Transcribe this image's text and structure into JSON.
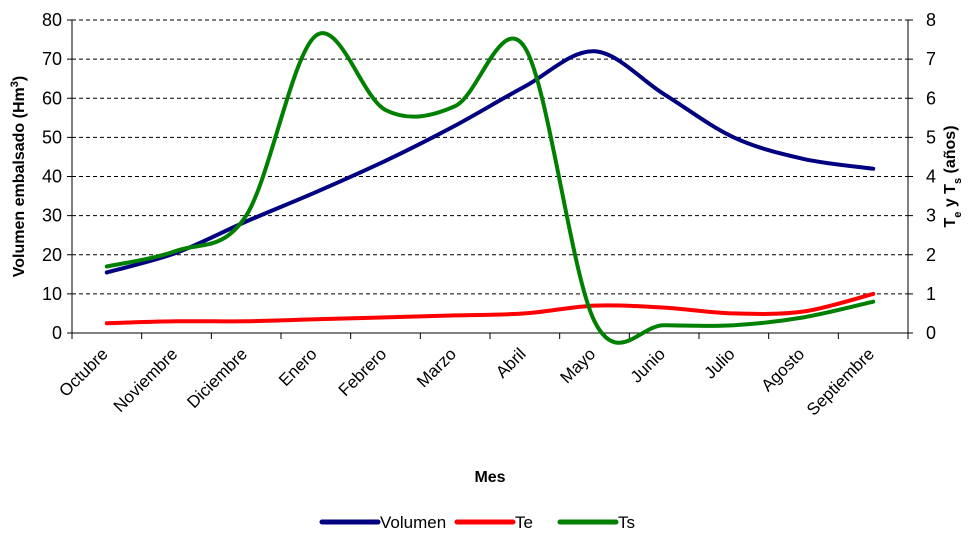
{
  "chart_data": {
    "type": "line",
    "xlabel": "Mes",
    "ylabel_left": "Volumen embalsado (Hm",
    "ylabel_left_sup": "3",
    "ylabel_left_end": ")",
    "ylabel_right": "Te y Ts (años)",
    "ylabel_right_parts": [
      "T",
      "e",
      " y ",
      "T",
      "s",
      " (años)"
    ],
    "categories": [
      "Octubre",
      "Noviembre",
      "Diciembre",
      "Enero",
      "Febrero",
      "Marzo",
      "Abril",
      "Mayo",
      "Junio",
      "Julio",
      "Agosto",
      "Septiembre"
    ],
    "ylim_left": [
      0,
      80
    ],
    "yticks_left": [
      0,
      10,
      20,
      30,
      40,
      50,
      60,
      70,
      80
    ],
    "ylim_right": [
      0,
      8
    ],
    "yticks_right": [
      0,
      1,
      2,
      3,
      4,
      5,
      6,
      7,
      8
    ],
    "grid": "horizontal-dashed",
    "legend_position": "bottom",
    "series": [
      {
        "name": "Volumen",
        "axis": "left",
        "color": "#000080",
        "values": [
          15.5,
          20.5,
          28.5,
          36,
          44,
          53,
          63,
          72,
          61,
          50,
          44.5,
          42
        ]
      },
      {
        "name": "Te",
        "axis": "right",
        "color": "#ff0000",
        "values": [
          0.25,
          0.3,
          0.3,
          0.35,
          0.4,
          0.45,
          0.5,
          0.7,
          0.65,
          0.5,
          0.55,
          1.0
        ]
      },
      {
        "name": "Ts",
        "axis": "right",
        "color": "#008000",
        "values": [
          1.7,
          2.1,
          3.0,
          7.6,
          5.7,
          5.8,
          7.3,
          0.3,
          0.2,
          0.2,
          0.4,
          0.8
        ]
      }
    ]
  }
}
